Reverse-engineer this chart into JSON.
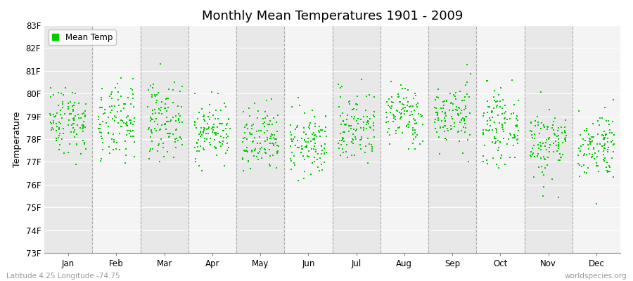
{
  "title": "Monthly Mean Temperatures 1901 - 2009",
  "ylabel": "Temperature",
  "xlabel_labels": [
    "Jan",
    "Feb",
    "Mar",
    "Apr",
    "May",
    "Jun",
    "Jul",
    "Aug",
    "Sep",
    "Oct",
    "Nov",
    "Dec"
  ],
  "ytick_labels": [
    "73F",
    "74F",
    "75F",
    "76F",
    "77F",
    "78F",
    "79F",
    "80F",
    "81F",
    "82F",
    "83F"
  ],
  "ytick_values": [
    73,
    74,
    75,
    76,
    77,
    78,
    79,
    80,
    81,
    82,
    83
  ],
  "ylim": [
    73,
    83
  ],
  "dot_color": "#00cc00",
  "dot_size": 3,
  "background_color": "#ffffff",
  "stripe_colors": [
    "#e8e8e8",
    "#f4f4f4"
  ],
  "legend_label": "Mean Temp",
  "footer_left": "Latitude 4.25 Longitude -74.75",
  "footer_right": "worldspecies.org",
  "title_fontsize": 13,
  "axis_fontsize": 9,
  "tick_fontsize": 8.5,
  "footer_fontsize": 7.5,
  "monthly_means": [
    78.85,
    78.65,
    78.85,
    78.35,
    77.85,
    77.75,
    78.55,
    79.05,
    79.05,
    78.55,
    77.85,
    77.75
  ],
  "monthly_stds": [
    0.75,
    0.85,
    0.8,
    0.65,
    0.75,
    0.7,
    0.8,
    0.65,
    0.7,
    0.75,
    0.8,
    0.75
  ],
  "n_years": 109,
  "seed": 42
}
